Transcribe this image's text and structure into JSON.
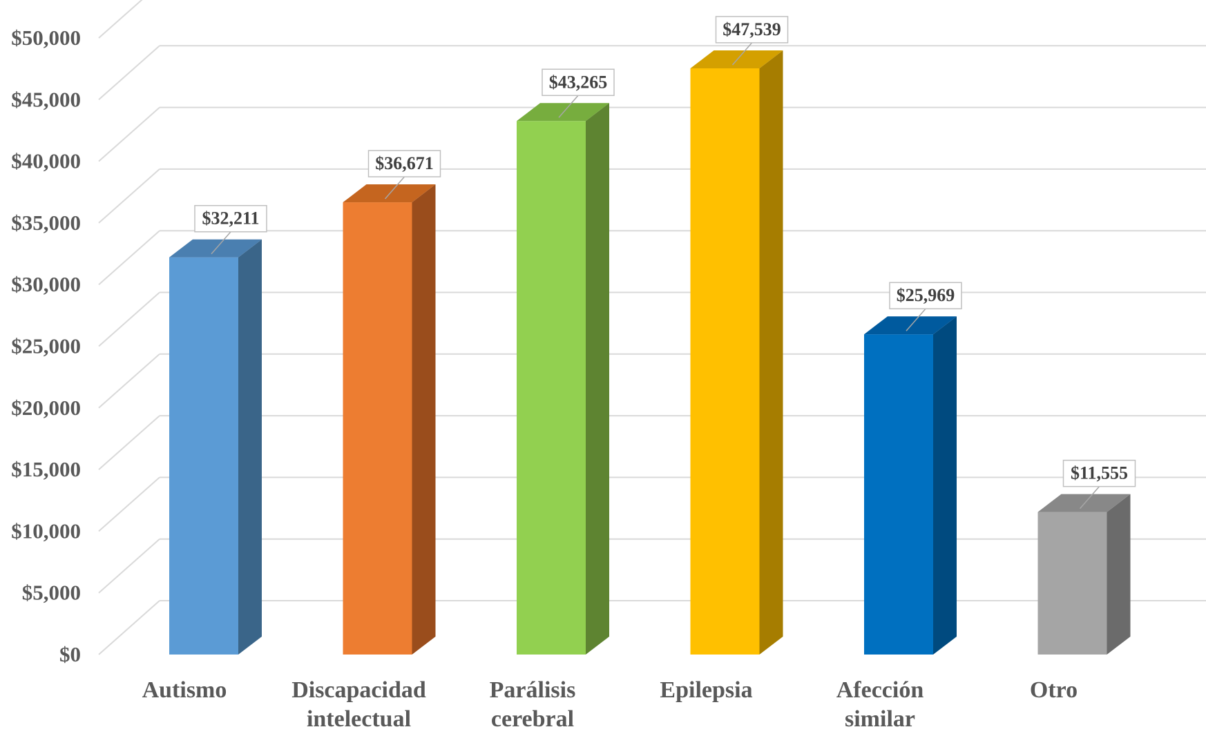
{
  "chart_data": {
    "type": "bar",
    "style": "3d-column",
    "categories": [
      [
        "Autismo"
      ],
      [
        "Discapacidad",
        "intelectual"
      ],
      [
        "Parálisis",
        "cerebral"
      ],
      [
        "Epilepsia"
      ],
      [
        "Afección",
        "similar"
      ],
      [
        "Otro"
      ]
    ],
    "values": [
      32211,
      36671,
      43265,
      47539,
      25969,
      11555
    ],
    "data_labels": [
      "$32,211",
      "$36,671",
      "$43,265",
      "$47,539",
      "$25,969",
      "$11,555"
    ],
    "colors": [
      "#5B9BD5",
      "#ED7D31",
      "#92D050",
      "#FFC000",
      "#0070C0",
      "#A5A5A5"
    ],
    "side_colors": [
      "#3A6589",
      "#9A4D1C",
      "#5E8431",
      "#A67D00",
      "#004A7F",
      "#6B6B6B"
    ],
    "top_colors": [
      "#4A7FB0",
      "#C5651F",
      "#77AD3E",
      "#D4A000",
      "#005A9E",
      "#888888"
    ],
    "yticks": [
      0,
      5000,
      10000,
      15000,
      20000,
      25000,
      30000,
      35000,
      40000,
      45000,
      50000
    ],
    "ytick_labels": [
      "$0",
      "$5,000",
      "$10,000",
      "$15,000",
      "$20,000",
      "$25,000",
      "$30,000",
      "$35,000",
      "$40,000",
      "$45,000",
      "$50,000"
    ],
    "ylim": [
      0,
      52500
    ],
    "grid": true,
    "legend": false,
    "title": "",
    "xlabel": "",
    "ylabel": ""
  }
}
